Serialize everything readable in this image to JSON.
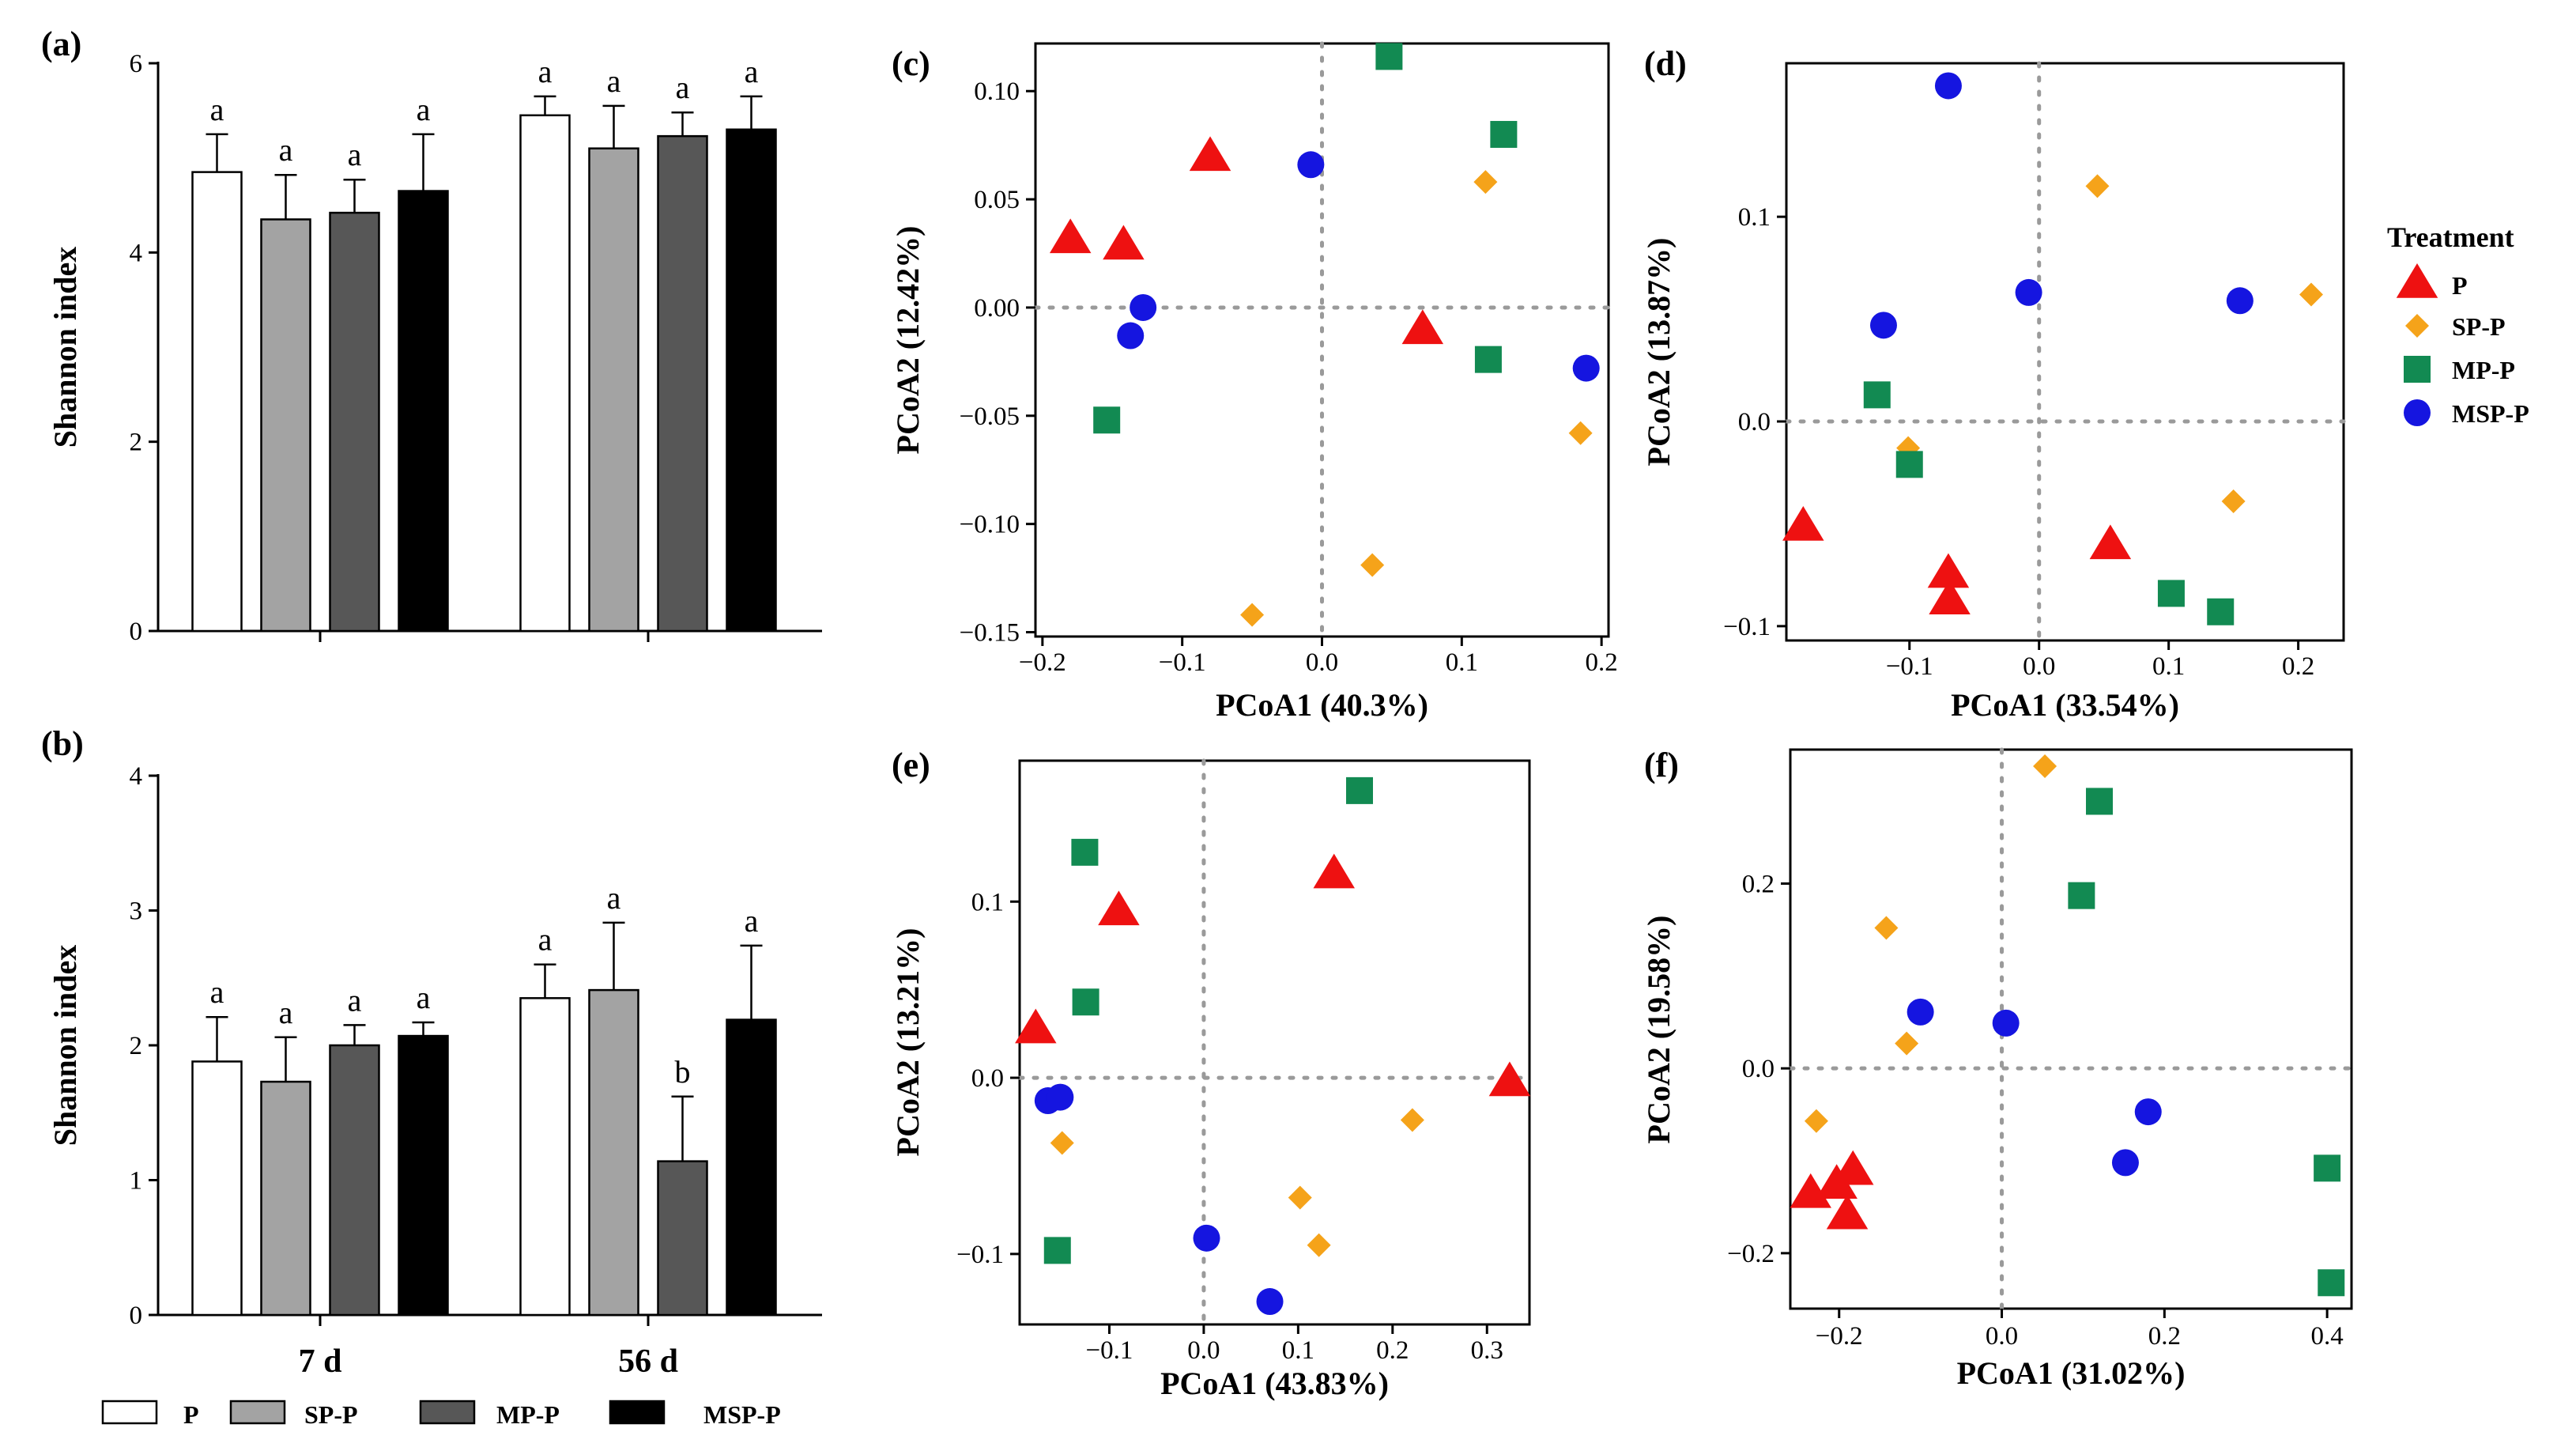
{
  "figure": {
    "colors": {
      "P": "#ee1111",
      "SP-P": "#f5a31a",
      "MP-P": "#128a52",
      "MSP-P": "#1515e0",
      "bar_P": "#ffffff",
      "bar_SP-P": "#a3a3a3",
      "bar_MP-P": "#575757",
      "bar_MSP-P": "#000000"
    },
    "bar_legend": {
      "items": [
        {
          "key": "P",
          "label": "P"
        },
        {
          "key": "SP-P",
          "label": "SP-P"
        },
        {
          "key": "MP-P",
          "label": "MP-P"
        },
        {
          "key": "MSP-P",
          "label": "MSP-P"
        }
      ]
    },
    "scatter_legend": {
      "title": "Treatment",
      "items": [
        {
          "key": "P",
          "label": "P",
          "shape": "triangle-icon"
        },
        {
          "key": "SP-P",
          "label": "SP-P",
          "shape": "diamond-icon"
        },
        {
          "key": "MP-P",
          "label": "MP-P",
          "shape": "square-icon"
        },
        {
          "key": "MSP-P",
          "label": "MSP-P",
          "shape": "circle-icon"
        }
      ]
    }
  },
  "chart_data": [
    {
      "id": "a",
      "panel_label": "(a)",
      "type": "bar",
      "ylabel": "Shannon index",
      "ylim": [
        0,
        6
      ],
      "yticks": [
        0,
        2,
        4,
        6
      ],
      "categories": [
        "7 d",
        "56 d"
      ],
      "show_category_labels": false,
      "series": [
        {
          "name": "P",
          "values": [
            4.85,
            5.45
          ],
          "errors": [
            0.4,
            0.2
          ],
          "letters": [
            "a",
            "a"
          ]
        },
        {
          "name": "SP-P",
          "values": [
            4.35,
            5.1
          ],
          "errors": [
            0.47,
            0.45
          ],
          "letters": [
            "a",
            "a"
          ]
        },
        {
          "name": "MP-P",
          "values": [
            4.42,
            5.23
          ],
          "errors": [
            0.35,
            0.25
          ],
          "letters": [
            "a",
            "a"
          ]
        },
        {
          "name": "MSP-P",
          "values": [
            4.65,
            5.3
          ],
          "errors": [
            0.6,
            0.35
          ],
          "letters": [
            "a",
            "a"
          ]
        }
      ]
    },
    {
      "id": "b",
      "panel_label": "(b)",
      "type": "bar",
      "ylabel": "Shannon index",
      "ylim": [
        0,
        4
      ],
      "yticks": [
        0,
        1,
        2,
        3,
        4
      ],
      "categories": [
        "7 d",
        "56 d"
      ],
      "show_category_labels": true,
      "series": [
        {
          "name": "P",
          "values": [
            1.88,
            2.35
          ],
          "errors": [
            0.33,
            0.25
          ],
          "letters": [
            "a",
            "a"
          ]
        },
        {
          "name": "SP-P",
          "values": [
            1.73,
            2.41
          ],
          "errors": [
            0.33,
            0.5
          ],
          "letters": [
            "a",
            "a"
          ]
        },
        {
          "name": "MP-P",
          "values": [
            2.0,
            1.14
          ],
          "errors": [
            0.15,
            0.48
          ],
          "letters": [
            "a",
            "b"
          ]
        },
        {
          "name": "MSP-P",
          "values": [
            2.07,
            2.19
          ],
          "errors": [
            0.1,
            0.55
          ],
          "letters": [
            "a",
            "a"
          ]
        }
      ]
    },
    {
      "id": "c",
      "panel_label": "(c)",
      "type": "scatter",
      "xlabel": "PCoA1 (40.3%)",
      "ylabel": "PCoA2 (12.42%)",
      "xlim": [
        -0.205,
        0.205
      ],
      "ylim": [
        -0.152,
        0.122
      ],
      "xticks": [
        -0.2,
        -0.1,
        0.0,
        0.1,
        0.2
      ],
      "xtick_labels": [
        "−0.2",
        "−0.1",
        "0.0",
        "0.1",
        "0.2"
      ],
      "yticks": [
        -0.15,
        -0.1,
        -0.05,
        0.0,
        0.05,
        0.1
      ],
      "ytick_labels": [
        "−0.15",
        "−0.10",
        "−0.05",
        "0.00",
        "0.05",
        "0.10"
      ],
      "series": [
        {
          "name": "P",
          "points": [
            [
              -0.18,
              0.032
            ],
            [
              -0.142,
              0.029
            ],
            [
              -0.08,
              0.07
            ],
            [
              0.072,
              -0.01
            ]
          ]
        },
        {
          "name": "SP-P",
          "points": [
            [
              0.117,
              0.058
            ],
            [
              0.185,
              -0.058
            ],
            [
              0.036,
              -0.119
            ],
            [
              -0.05,
              -0.142
            ]
          ]
        },
        {
          "name": "MP-P",
          "points": [
            [
              0.048,
              0.116
            ],
            [
              0.13,
              0.08
            ],
            [
              0.119,
              -0.024
            ],
            [
              -0.154,
              -0.052
            ]
          ]
        },
        {
          "name": "MSP-P",
          "points": [
            [
              -0.008,
              0.066
            ],
            [
              -0.128,
              0.0
            ],
            [
              -0.137,
              -0.013
            ],
            [
              0.189,
              -0.028
            ]
          ]
        }
      ]
    },
    {
      "id": "d",
      "panel_label": "(d)",
      "type": "scatter",
      "xlabel": "PCoA1 (33.54%)",
      "ylabel": "PCoA2 (13.87%)",
      "xlim": [
        -0.195,
        0.235
      ],
      "ylim": [
        -0.107,
        0.175
      ],
      "xticks": [
        -0.1,
        0.0,
        0.1,
        0.2
      ],
      "xtick_labels": [
        "−0.1",
        "0.0",
        "0.1",
        "0.2"
      ],
      "yticks": [
        -0.1,
        0.0,
        0.1
      ],
      "ytick_labels": [
        "−0.1",
        "0.0",
        "0.1"
      ],
      "series": [
        {
          "name": "P",
          "points": [
            [
              -0.182,
              -0.051
            ],
            [
              -0.07,
              -0.074
            ],
            [
              -0.069,
              -0.087
            ],
            [
              0.055,
              -0.06
            ]
          ]
        },
        {
          "name": "SP-P",
          "points": [
            [
              0.045,
              0.115
            ],
            [
              0.21,
              0.062
            ],
            [
              0.15,
              -0.039
            ],
            [
              -0.101,
              -0.013
            ]
          ]
        },
        {
          "name": "MP-P",
          "points": [
            [
              -0.125,
              0.013
            ],
            [
              -0.1,
              -0.021
            ],
            [
              0.102,
              -0.084
            ],
            [
              0.14,
              -0.093
            ]
          ]
        },
        {
          "name": "MSP-P",
          "points": [
            [
              -0.07,
              0.164
            ],
            [
              -0.008,
              0.063
            ],
            [
              0.155,
              0.059
            ],
            [
              -0.12,
              0.047
            ]
          ]
        }
      ]
    },
    {
      "id": "e",
      "panel_label": "(e)",
      "type": "scatter",
      "xlabel": "PCoA1 (43.83%)",
      "ylabel": "PCoA2 (13.21%)",
      "xlim": [
        -0.195,
        0.345
      ],
      "ylim": [
        -0.14,
        0.18
      ],
      "xticks": [
        -0.1,
        0.0,
        0.1,
        0.2,
        0.3
      ],
      "xtick_labels": [
        "−0.1",
        "0.0",
        "0.1",
        "0.2",
        "0.3"
      ],
      "yticks": [
        -0.1,
        0.0,
        0.1
      ],
      "ytick_labels": [
        "−0.1",
        "0.0",
        "0.1"
      ],
      "series": [
        {
          "name": "P",
          "points": [
            [
              -0.178,
              0.028
            ],
            [
              -0.09,
              0.095
            ],
            [
              0.138,
              0.116
            ],
            [
              0.324,
              -0.002
            ]
          ]
        },
        {
          "name": "SP-P",
          "points": [
            [
              -0.15,
              -0.037
            ],
            [
              0.102,
              -0.068
            ],
            [
              0.122,
              -0.095
            ],
            [
              0.221,
              -0.024
            ]
          ]
        },
        {
          "name": "MP-P",
          "points": [
            [
              -0.126,
              0.128
            ],
            [
              -0.125,
              0.043
            ],
            [
              -0.155,
              -0.098
            ],
            [
              0.165,
              0.163
            ]
          ]
        },
        {
          "name": "MSP-P",
          "points": [
            [
              -0.165,
              -0.013
            ],
            [
              -0.152,
              -0.011
            ],
            [
              0.003,
              -0.091
            ],
            [
              0.07,
              -0.127
            ]
          ]
        }
      ]
    },
    {
      "id": "f",
      "panel_label": "(f)",
      "type": "scatter",
      "xlabel": "PCoA1 (31.02%)",
      "ylabel": "PCoA2 (19.58%)",
      "xlim": [
        -0.26,
        0.43
      ],
      "ylim": [
        -0.26,
        0.345
      ],
      "xticks": [
        -0.2,
        0.0,
        0.2,
        0.4
      ],
      "xtick_labels": [
        "−0.2",
        "0.0",
        "0.2",
        "0.4"
      ],
      "yticks": [
        -0.2,
        0.0,
        0.2
      ],
      "ytick_labels": [
        "−0.2",
        "0.0",
        "0.2"
      ],
      "series": [
        {
          "name": "P",
          "points": [
            [
              -0.235,
              -0.135
            ],
            [
              -0.203,
              -0.125
            ],
            [
              -0.183,
              -0.11
            ],
            [
              -0.19,
              -0.158
            ]
          ]
        },
        {
          "name": "SP-P",
          "points": [
            [
              0.053,
              0.327
            ],
            [
              -0.142,
              0.152
            ],
            [
              -0.117,
              0.027
            ],
            [
              -0.228,
              -0.057
            ]
          ]
        },
        {
          "name": "MP-P",
          "points": [
            [
              0.12,
              0.289
            ],
            [
              0.098,
              0.187
            ],
            [
              0.4,
              -0.108
            ],
            [
              0.405,
              -0.232
            ]
          ]
        },
        {
          "name": "MSP-P",
          "points": [
            [
              -0.1,
              0.061
            ],
            [
              0.005,
              0.049
            ],
            [
              0.18,
              -0.047
            ],
            [
              0.152,
              -0.102
            ]
          ]
        }
      ]
    }
  ]
}
